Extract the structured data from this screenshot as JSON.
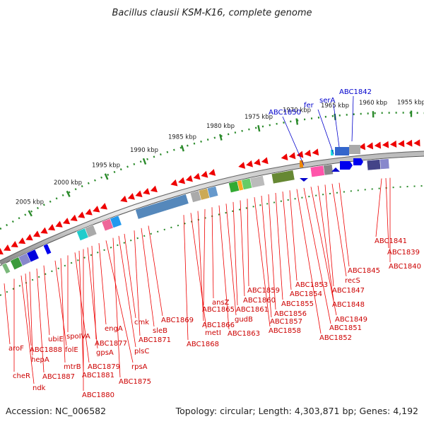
{
  "title": "Bacillus clausii KSM-K16, complete genome",
  "footer": {
    "accession": "Accession: NC_006582",
    "topology": "Topology: circular; Length: 4,303,871 bp; Genes: 4,192"
  },
  "scale_ticks": [
    "2005 kbp",
    "2000 kbp",
    "1995 kbp",
    "1990 kbp",
    "1985 kbp",
    "1980 kbp",
    "1975 kbp",
    "1970 kbp",
    "1965 kbp",
    "1960 kbp",
    "1955 kbp"
  ],
  "reverse_gene_labels": [
    "aroF",
    "cheR",
    "ndk",
    "ABC1888",
    "hepA",
    "ABC1887",
    "ubiE",
    "folE",
    "mtrB",
    "spoIVA",
    "ABC1879",
    "ABC1881",
    "ABC1880",
    "gpsA",
    "ABC1877",
    "engA",
    "rpsA",
    "ABC1875",
    "plsC",
    "cmk",
    "ABC1871",
    "sleB",
    "ABC1869",
    "ABC1868",
    "metI",
    "ABC1866",
    "ABC1865",
    "ansZ",
    "ABC1863",
    "gudB",
    "ABC1861",
    "ABC1860",
    "ABC1859",
    "ABC1858",
    "ABC1857",
    "ABC1856",
    "ABC1855",
    "ABC1854",
    "ABC1853",
    "ABC1852",
    "ABC1851",
    "ABC1849",
    "ABC1848",
    "ABC1847",
    "recS",
    "ABC1845",
    "ABC1841",
    "ABC1839",
    "ABC1840"
  ],
  "forward_gene_labels": [
    "ABC1850",
    "fer",
    "serA",
    "ABC1842"
  ],
  "colors": {
    "reverse_genes": "#ee0000",
    "forward_genes": "#0000cc",
    "ticks": "#2a8a2a",
    "backbone": "#888888"
  }
}
